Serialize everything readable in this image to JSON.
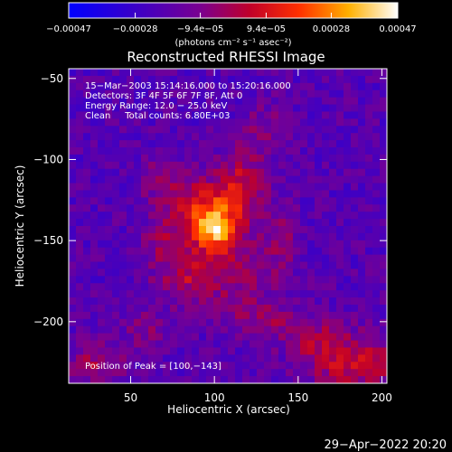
{
  "chart_data": {
    "type": "heatmap",
    "title": "Reconstructed RHESSI Image",
    "xlabel": "Heliocentric X (arcsec)",
    "ylabel": "Heliocentric Y (arcsec)",
    "xlim": [
      13,
      203
    ],
    "ylim": [
      -238,
      -44
    ],
    "x_ticks": [
      50,
      100,
      150,
      200
    ],
    "y_ticks": [
      -50,
      -100,
      -150,
      -200
    ],
    "x_tick_labels": [
      "50",
      "100",
      "150",
      "200"
    ],
    "y_tick_labels": [
      "−50",
      "−100",
      "−150",
      "−200"
    ],
    "colorbar": {
      "min": -0.00047,
      "max": 0.00047,
      "ticks": [
        -0.00047,
        -0.00028,
        -9.4e-05,
        9.4e-05,
        0.00028,
        0.00047
      ],
      "tick_labels": [
        "−0.00047",
        "−0.00028",
        "−9.4e−05",
        "9.4e−05",
        "0.00028",
        "0.00047"
      ],
      "units": "(photons cm⁻² s⁻¹ asec⁻²)"
    },
    "annotations": [
      "15−Mar−2003 15:14:16.000 to 15:20:16.000",
      "Detectors: 3F 4F 5F 6F 7F 8F, Att 0",
      "Energy Range: 12.0 − 25.0 keV",
      "Clean     Total counts: 6.80E+03"
    ],
    "peak_label": "Position of Peak = [100,−143]",
    "peak": [
      100,
      -143
    ],
    "sources": [
      {
        "x": 100,
        "y": -143,
        "amp": 0.00046,
        "sx": 9,
        "sy": 9
      },
      {
        "x": 92,
        "y": -128,
        "amp": 0.00028,
        "sx": 16,
        "sy": 12
      },
      {
        "x": 116,
        "y": -116,
        "amp": 0.00022,
        "sx": 10,
        "sy": 16
      },
      {
        "x": 84,
        "y": -172,
        "amp": 0.00022,
        "sx": 14,
        "sy": 12
      },
      {
        "x": 112,
        "y": -166,
        "amp": 0.00018,
        "sx": 12,
        "sy": 14
      },
      {
        "x": 72,
        "y": -150,
        "amp": 0.00016,
        "sx": 10,
        "sy": 8
      },
      {
        "x": 140,
        "y": -152,
        "amp": 0.00014,
        "sx": 8,
        "sy": 16
      },
      {
        "x": 66,
        "y": -110,
        "amp": 0.00012,
        "sx": 8,
        "sy": 10
      },
      {
        "x": 128,
        "y": -198,
        "amp": 0.00016,
        "sx": 14,
        "sy": 10
      },
      {
        "x": 185,
        "y": -225,
        "amp": 0.00026,
        "sx": 20,
        "sy": 12
      },
      {
        "x": 160,
        "y": -210,
        "amp": 0.00014,
        "sx": 12,
        "sy": 10
      },
      {
        "x": 130,
        "y": -80,
        "amp": 0.0001,
        "sx": 10,
        "sy": 12
      },
      {
        "x": 30,
        "y": -225,
        "amp": 0.00018,
        "sx": 12,
        "sy": 10
      },
      {
        "x": 60,
        "y": -205,
        "amp": 0.00012,
        "sx": 10,
        "sy": 8
      }
    ],
    "background": -0.0002,
    "grid": false
  },
  "footer": {
    "timestamp": "29−Apr−2022 20:20"
  }
}
